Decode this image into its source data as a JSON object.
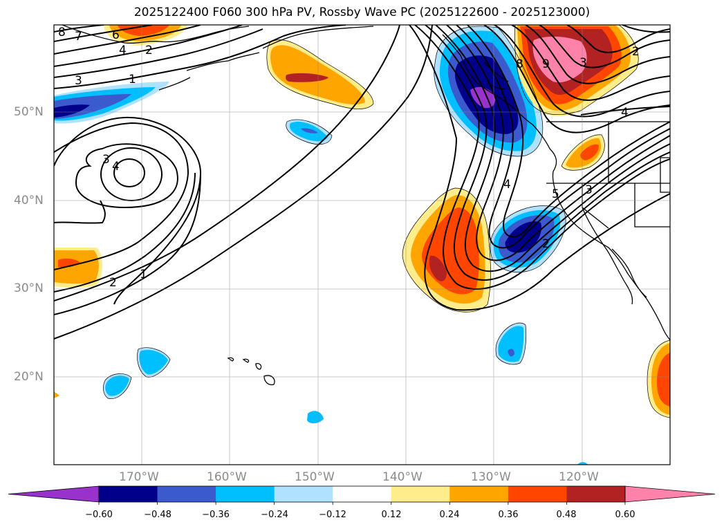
{
  "title": "2025122400 F060 300 hPa PV, Rossby Wave PC (2025122600 - 2025123000)",
  "lat_labels": [
    "50°N",
    "40°N",
    "30°N",
    "20°N"
  ],
  "lon_labels": [
    "170°W",
    "160°W",
    "150°W",
    "140°W",
    "130°W",
    "120°W"
  ],
  "colorbar": {
    "ticks": [
      "−0.60",
      "−0.48",
      "−0.36",
      "−0.24",
      "−0.12",
      "0.12",
      "0.24",
      "0.36",
      "0.48",
      "0.60"
    ],
    "levels": [
      -0.6,
      -0.48,
      -0.36,
      -0.24,
      -0.12,
      0.12,
      0.24,
      0.36,
      0.48,
      0.6
    ],
    "colors": [
      "#9932cc",
      "#00008b",
      "#3a5acd",
      "#00bfff",
      "#b0e2ff",
      "#ffffff",
      "#ffec8b",
      "#ffa500",
      "#ff4500",
      "#b22222",
      "#ff82ab"
    ]
  },
  "contour_labels": [
    "8",
    "7",
    "6",
    "4",
    "2",
    "3",
    "1",
    "3",
    "4",
    "2",
    "1",
    "9",
    "8",
    "3",
    "2",
    "4",
    "4",
    "5",
    "3",
    "2"
  ],
  "palette": {
    "purple": "#9932cc",
    "navy": "#00008b",
    "blue": "#3a5acd",
    "cyan": "#00bfff",
    "lightcyan": "#b0e2ff",
    "yellow": "#ffec8b",
    "orange": "#ffa500",
    "redorange": "#ff4500",
    "firebrick": "#b22222",
    "pink": "#ff82ab"
  }
}
